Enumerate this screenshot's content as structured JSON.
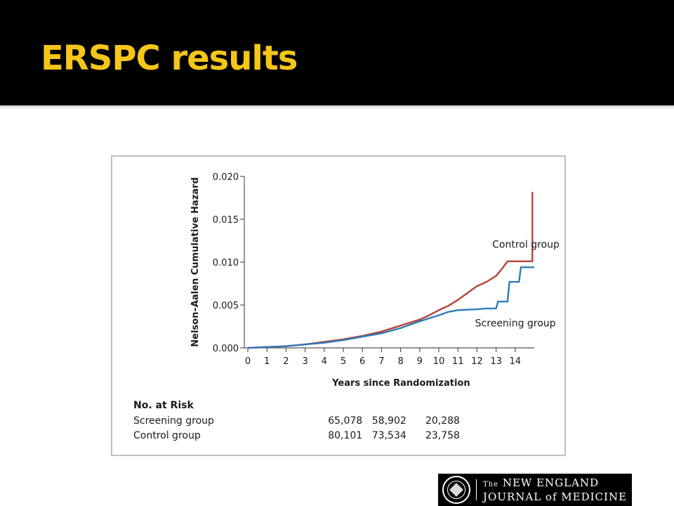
{
  "slide": {
    "title": "ERSPC results"
  },
  "logo": {
    "line1_prefix": "The",
    "line1_main": "NEW ENGLAND",
    "line2": "JOURNAL of MEDICINE"
  },
  "chart_data": {
    "type": "line",
    "ylabel": "Nelson–Aalen Cumulative Hazard",
    "xlabel": "Years since Randomization",
    "xlim": [
      0,
      15
    ],
    "ylim": [
      0,
      0.02
    ],
    "x_ticks": [
      "0",
      "1",
      "2",
      "3",
      "4",
      "5",
      "6",
      "7",
      "8",
      "9",
      "10",
      "11",
      "12",
      "13",
      "14"
    ],
    "y_ticks": [
      "0.000",
      "0.005",
      "0.010",
      "0.015",
      "0.020"
    ],
    "grid": false,
    "series": [
      {
        "name": "Control group",
        "color": "#b5443a",
        "points": [
          [
            0,
            0
          ],
          [
            1,
            0.0001
          ],
          [
            2,
            0.0002
          ],
          [
            3,
            0.0004
          ],
          [
            4,
            0.0007
          ],
          [
            5,
            0.001
          ],
          [
            6,
            0.0014
          ],
          [
            7,
            0.0019
          ],
          [
            8,
            0.0026
          ],
          [
            9,
            0.0033
          ],
          [
            9.5,
            0.0038
          ],
          [
            10,
            0.0044
          ],
          [
            10.5,
            0.0049
          ],
          [
            11,
            0.0056
          ],
          [
            11.5,
            0.0064
          ],
          [
            12,
            0.0072
          ],
          [
            12.5,
            0.0077
          ],
          [
            13,
            0.0084
          ],
          [
            13.3,
            0.0092
          ],
          [
            13.6,
            0.0101
          ],
          [
            14,
            0.0101
          ],
          [
            14.5,
            0.0101
          ],
          [
            14.9,
            0.0101
          ],
          [
            14.9,
            0.0182
          ]
        ]
      },
      {
        "name": "Screening group",
        "color": "#2f7ab9",
        "points": [
          [
            0,
            0
          ],
          [
            1,
            0.0001
          ],
          [
            2,
            0.0002
          ],
          [
            3,
            0.0004
          ],
          [
            4,
            0.0006
          ],
          [
            5,
            0.0009
          ],
          [
            6,
            0.0013
          ],
          [
            7,
            0.0017
          ],
          [
            8,
            0.0023
          ],
          [
            9,
            0.0031
          ],
          [
            10,
            0.0038
          ],
          [
            10.5,
            0.0042
          ],
          [
            11,
            0.0044
          ],
          [
            12,
            0.0045
          ],
          [
            12.5,
            0.0046
          ],
          [
            13,
            0.0046
          ],
          [
            13.1,
            0.0054
          ],
          [
            13.6,
            0.0054
          ],
          [
            13.7,
            0.0077
          ],
          [
            14.2,
            0.0077
          ],
          [
            14.3,
            0.0094
          ],
          [
            15,
            0.0094
          ]
        ]
      }
    ],
    "annotations": [
      {
        "text": "Control group",
        "x": 12.8,
        "y": 0.0117
      },
      {
        "text": "Screening group",
        "x": 11.9,
        "y": 0.0025
      }
    ],
    "risk_table": {
      "title": "No. at Risk",
      "rows": [
        {
          "label": "Screening group",
          "values": [
            "65,078",
            "58,902",
            "20,288"
          ]
        },
        {
          "label": "Control group",
          "values": [
            "80,101",
            "73,534",
            "23,758"
          ]
        }
      ]
    }
  }
}
